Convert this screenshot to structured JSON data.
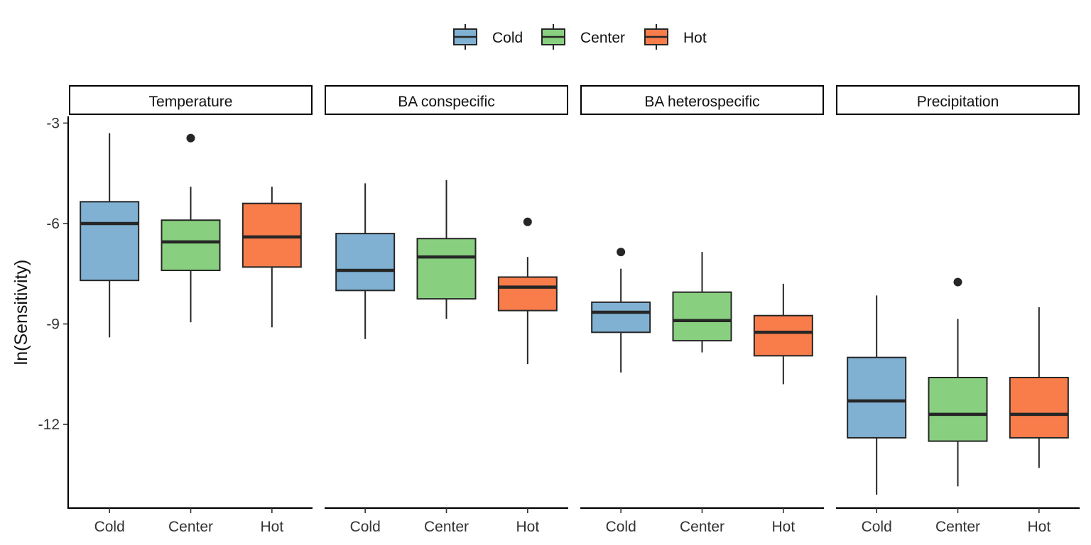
{
  "chart_data": {
    "type": "boxplot",
    "ylabel": "ln(Sensitivity)",
    "xlabel": "",
    "ylim": [
      -14.5,
      -2.8
    ],
    "y_ticks": [
      -3,
      -6,
      -9,
      -12
    ],
    "y_tick_labels": [
      "-3",
      "-6",
      "-9",
      "-12"
    ],
    "grid": false,
    "legend_position": "top",
    "categories": [
      "Cold",
      "Center",
      "Hot"
    ],
    "series": [
      {
        "name": "Cold",
        "color": "#80b1d3"
      },
      {
        "name": "Center",
        "color": "#88d07f"
      },
      {
        "name": "Hot",
        "color": "#f87d4b"
      }
    ],
    "facets": [
      {
        "name": "Temperature",
        "boxes": [
          {
            "group": "Cold",
            "whisker_low": -9.4,
            "q1": -7.7,
            "median": -6.0,
            "q3": -5.35,
            "whisker_high": -3.3,
            "outliers": []
          },
          {
            "group": "Center",
            "whisker_low": -8.95,
            "q1": -7.4,
            "median": -6.55,
            "q3": -5.9,
            "whisker_high": -4.9,
            "outliers": [
              -3.45
            ]
          },
          {
            "group": "Hot",
            "whisker_low": -9.1,
            "q1": -7.3,
            "median": -6.4,
            "q3": -5.4,
            "whisker_high": -4.9,
            "outliers": []
          }
        ]
      },
      {
        "name": "BA conspecific",
        "boxes": [
          {
            "group": "Cold",
            "whisker_low": -9.45,
            "q1": -8.0,
            "median": -7.4,
            "q3": -6.3,
            "whisker_high": -4.8,
            "outliers": []
          },
          {
            "group": "Center",
            "whisker_low": -8.85,
            "q1": -8.25,
            "median": -7.0,
            "q3": -6.45,
            "whisker_high": -4.7,
            "outliers": []
          },
          {
            "group": "Hot",
            "whisker_low": -10.2,
            "q1": -8.6,
            "median": -7.9,
            "q3": -7.6,
            "whisker_high": -7.0,
            "outliers": [
              -5.95
            ]
          }
        ]
      },
      {
        "name": "BA heterospecific",
        "boxes": [
          {
            "group": "Cold",
            "whisker_low": -10.45,
            "q1": -9.25,
            "median": -8.65,
            "q3": -8.35,
            "whisker_high": -7.35,
            "outliers": [
              -6.85
            ]
          },
          {
            "group": "Center",
            "whisker_low": -9.85,
            "q1": -9.5,
            "median": -8.9,
            "q3": -8.05,
            "whisker_high": -6.85,
            "outliers": []
          },
          {
            "group": "Hot",
            "whisker_low": -10.8,
            "q1": -9.95,
            "median": -9.25,
            "q3": -8.75,
            "whisker_high": -7.8,
            "outliers": []
          }
        ]
      },
      {
        "name": "Precipitation",
        "boxes": [
          {
            "group": "Cold",
            "whisker_low": -14.1,
            "q1": -12.4,
            "median": -11.3,
            "q3": -10.0,
            "whisker_high": -8.15,
            "outliers": []
          },
          {
            "group": "Center",
            "whisker_low": -13.85,
            "q1": -12.5,
            "median": -11.7,
            "q3": -10.6,
            "whisker_high": -8.85,
            "outliers": [
              -7.75
            ]
          },
          {
            "group": "Hot",
            "whisker_low": -13.3,
            "q1": -12.4,
            "median": -11.7,
            "q3": -10.6,
            "whisker_high": -8.5,
            "outliers": []
          }
        ]
      }
    ]
  }
}
